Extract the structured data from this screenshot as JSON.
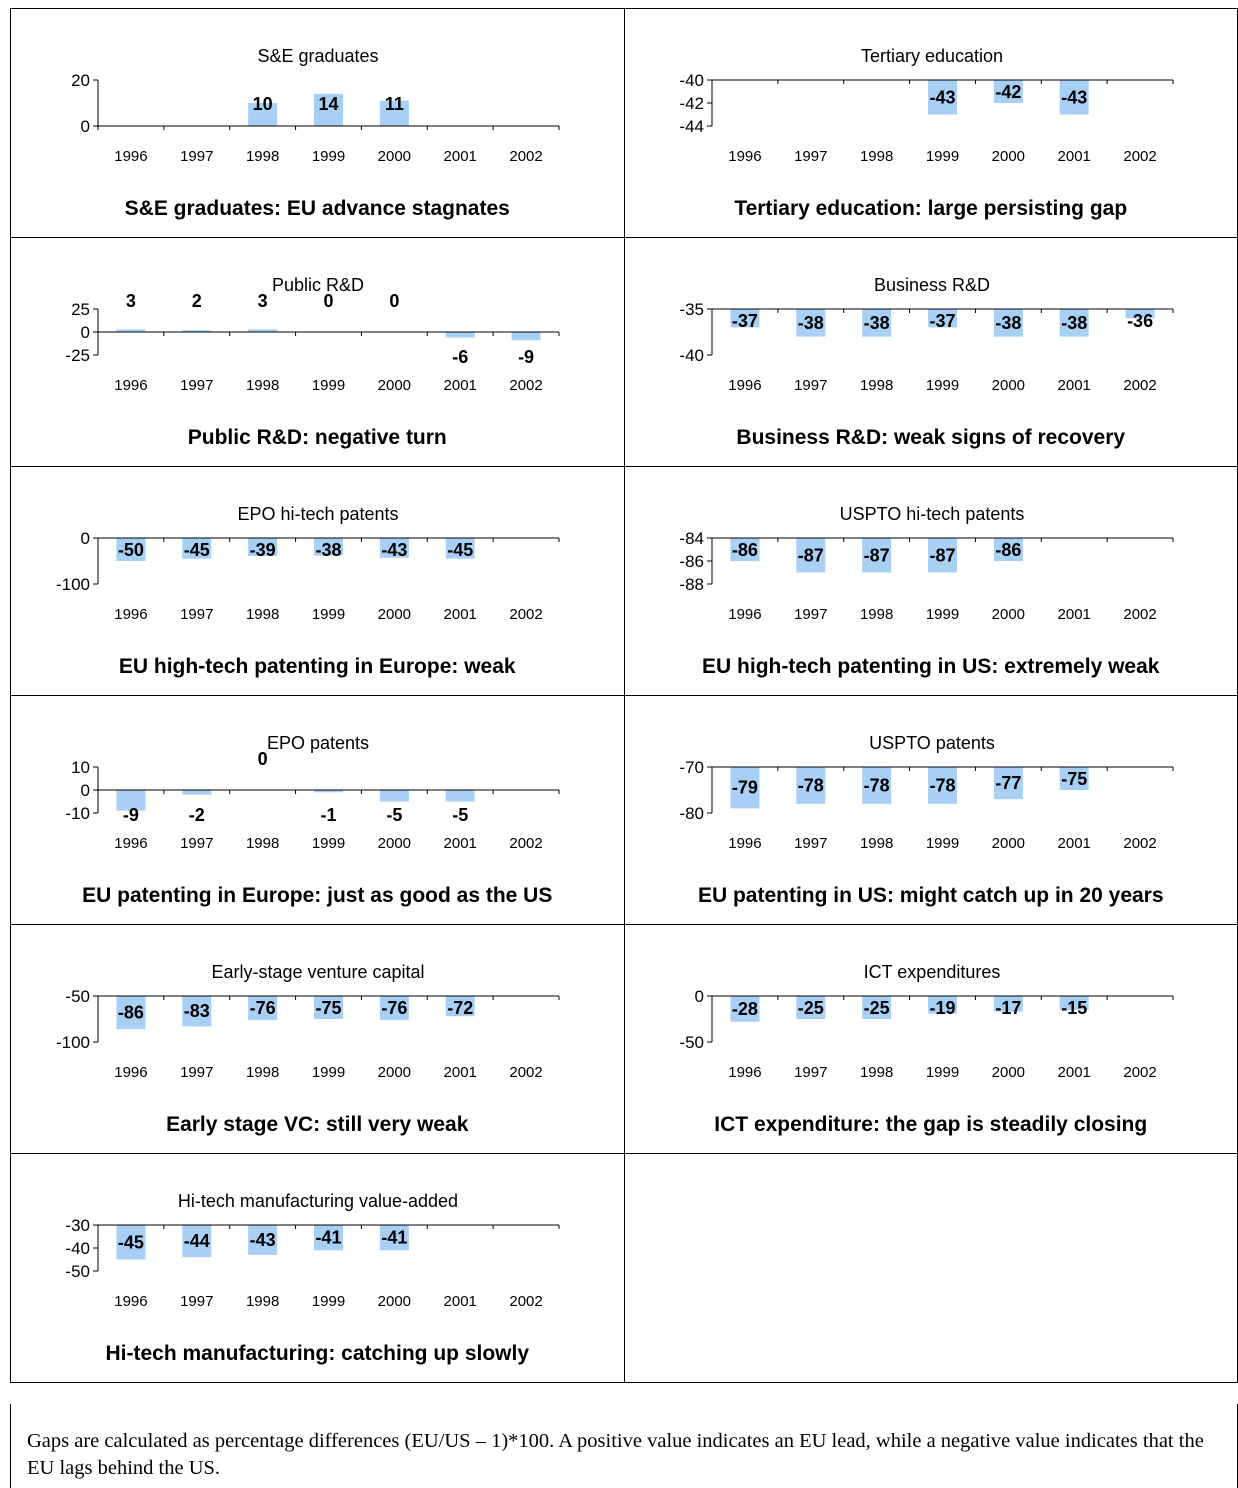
{
  "colors": {
    "bar": "#a8d0f5",
    "axis": "#000000"
  },
  "chart_data": [
    {
      "type": "bar",
      "title": "S&E graduates",
      "caption": "S&E graduates: EU advance stagnates",
      "categories": [
        "1996",
        "1997",
        "1998",
        "1999",
        "2000",
        "2001",
        "2002"
      ],
      "values": [
        null,
        null,
        10,
        14,
        11,
        null,
        null
      ],
      "labels": [
        "",
        "",
        "10",
        "14",
        "11",
        "",
        ""
      ],
      "yticks": [
        "20",
        "0"
      ],
      "ylim": [
        0,
        20
      ],
      "xlabel": "",
      "ylabel": ""
    },
    {
      "type": "bar",
      "title": "Tertiary education",
      "caption": "Tertiary education: large persisting gap",
      "categories": [
        "1996",
        "1997",
        "1998",
        "1999",
        "2000",
        "2001",
        "2002"
      ],
      "values": [
        null,
        null,
        null,
        -43,
        -42,
        -43,
        null
      ],
      "labels": [
        "",
        "",
        "",
        "-43",
        "-42",
        "-43",
        ""
      ],
      "yticks": [
        "-40",
        "-42",
        "-44"
      ],
      "ylim": [
        -44,
        -40
      ],
      "xlabel": "",
      "ylabel": ""
    },
    {
      "type": "bar",
      "title": "Public R&D",
      "caption": "Public R&D: negative turn",
      "categories": [
        "1996",
        "1997",
        "1998",
        "1999",
        "2000",
        "2001",
        "2002"
      ],
      "values": [
        3,
        2,
        3,
        0,
        0,
        -6,
        -9
      ],
      "labels": [
        "3",
        "2",
        "3",
        "0",
        "0",
        "-6",
        "-9"
      ],
      "yticks": [
        "25",
        "0",
        "-25"
      ],
      "ylim": [
        -25,
        25
      ],
      "xlabel": "",
      "ylabel": ""
    },
    {
      "type": "bar",
      "title": "Business R&D",
      "caption": "Business R&D: weak signs of recovery",
      "categories": [
        "1996",
        "1997",
        "1998",
        "1999",
        "2000",
        "2001",
        "2002"
      ],
      "values": [
        -37,
        -38,
        -38,
        -37,
        -38,
        -38,
        -36
      ],
      "labels": [
        "-37",
        "-38",
        "-38",
        "-37",
        "-38",
        "-38",
        "-36"
      ],
      "yticks": [
        "-35",
        "-40"
      ],
      "ylim": [
        -40,
        -35
      ],
      "xlabel": "",
      "ylabel": ""
    },
    {
      "type": "bar",
      "title": "EPO hi-tech patents",
      "caption": "EU high-tech patenting in Europe: weak",
      "categories": [
        "1996",
        "1997",
        "1998",
        "1999",
        "2000",
        "2001",
        "2002"
      ],
      "values": [
        -50,
        -45,
        -39,
        -38,
        -43,
        -45,
        null
      ],
      "labels": [
        "-50",
        "-45",
        "-39",
        "-38",
        "-43",
        "-45",
        ""
      ],
      "yticks": [
        "0",
        "-100"
      ],
      "ylim": [
        -100,
        0
      ],
      "xlabel": "",
      "ylabel": ""
    },
    {
      "type": "bar",
      "title": "USPTO hi-tech patents",
      "caption": "EU high-tech patenting in US: extremely weak",
      "categories": [
        "1996",
        "1997",
        "1998",
        "1999",
        "2000",
        "2001",
        "2002"
      ],
      "values": [
        -86,
        -87,
        -87,
        -87,
        -86,
        null,
        null
      ],
      "labels": [
        "-86",
        "-87",
        "-87",
        "-87",
        "-86",
        "",
        ""
      ],
      "yticks": [
        "-84",
        "-86",
        "-88"
      ],
      "ylim": [
        -88,
        -84
      ],
      "xlabel": "",
      "ylabel": ""
    },
    {
      "type": "bar",
      "title": "EPO patents",
      "caption": "EU patenting in Europe: just as good as the US",
      "categories": [
        "1996",
        "1997",
        "1998",
        "1999",
        "2000",
        "2001",
        "2002"
      ],
      "values": [
        -9,
        -2,
        0,
        -1,
        -5,
        -5,
        null
      ],
      "labels": [
        "-9",
        "-2",
        "0",
        "-1",
        "-5",
        "-5",
        ""
      ],
      "yticks": [
        "10",
        "0",
        "-10"
      ],
      "ylim": [
        -10,
        10
      ],
      "xlabel": "",
      "ylabel": ""
    },
    {
      "type": "bar",
      "title": "USPTO patents",
      "caption": "EU patenting in US: might catch up in 20 years",
      "categories": [
        "1996",
        "1997",
        "1998",
        "1999",
        "2000",
        "2001",
        "2002"
      ],
      "values": [
        -79,
        -78,
        -78,
        -78,
        -77,
        -75,
        null
      ],
      "labels": [
        "-79",
        "-78",
        "-78",
        "-78",
        "-77",
        "-75",
        ""
      ],
      "yticks": [
        "-70",
        "-80"
      ],
      "ylim": [
        -80,
        -70
      ],
      "xlabel": "",
      "ylabel": ""
    },
    {
      "type": "bar",
      "title": "Early-stage venture capital",
      "caption": "Early stage VC: still very weak",
      "categories": [
        "1996",
        "1997",
        "1998",
        "1999",
        "2000",
        "2001",
        "2002"
      ],
      "values": [
        -86,
        -83,
        -76,
        -75,
        -76,
        -72,
        null
      ],
      "labels": [
        "-86",
        "-83",
        "-76",
        "-75",
        "-76",
        "-72",
        ""
      ],
      "yticks": [
        "-50",
        "-100"
      ],
      "ylim": [
        -100,
        -50
      ],
      "xlabel": "",
      "ylabel": ""
    },
    {
      "type": "bar",
      "title": "ICT expenditures",
      "caption": "ICT expenditure: the gap is steadily closing",
      "categories": [
        "1996",
        "1997",
        "1998",
        "1999",
        "2000",
        "2001",
        "2002"
      ],
      "values": [
        -28,
        -25,
        -25,
        -19,
        -17,
        -15,
        null
      ],
      "labels": [
        "-28",
        "-25",
        "-25",
        "-19",
        "-17",
        "-15",
        ""
      ],
      "yticks": [
        "0",
        "-50"
      ],
      "ylim": [
        -50,
        0
      ],
      "xlabel": "",
      "ylabel": ""
    },
    {
      "type": "bar",
      "title": "Hi-tech manufacturing value-added",
      "caption": "Hi-tech manufacturing: catching up slowly",
      "categories": [
        "1996",
        "1997",
        "1998",
        "1999",
        "2000",
        "2001",
        "2002"
      ],
      "values": [
        -45,
        -44,
        -43,
        -41,
        -41,
        null,
        null
      ],
      "labels": [
        "-45",
        "-44",
        "-43",
        "-41",
        "-41",
        "",
        ""
      ],
      "yticks": [
        "-30",
        "-40",
        "-50"
      ],
      "ylim": [
        -50,
        -30
      ],
      "xlabel": "",
      "ylabel": ""
    }
  ],
  "note": "Gaps are calculated as percentage differences (EU/US – 1)*100. A positive value indicates an EU lead, while a negative value indicates that the EU lags behind the US."
}
